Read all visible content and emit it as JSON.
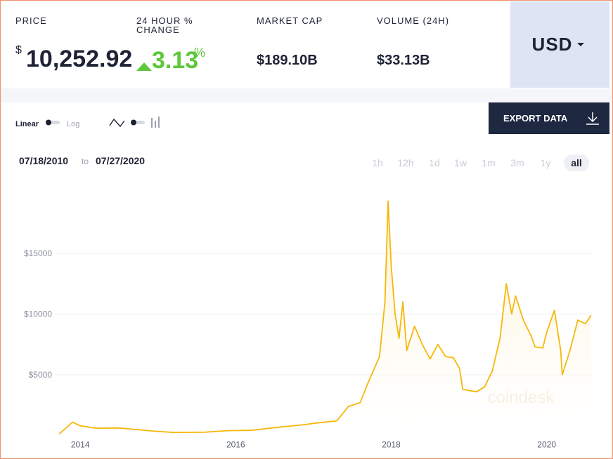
{
  "header": {
    "price_label": "PRICE",
    "price_currency": "$",
    "price": "10,252.92",
    "change_label": "24 HOUR % CHANGE",
    "change": "3.13",
    "change_unit": "%",
    "market_cap_label": "MARKET CAP",
    "market_cap": "$189.10B",
    "volume_label": "VOLUME (24H)",
    "volume": "$33.13B",
    "currency": "USD"
  },
  "controls": {
    "linear": "Linear",
    "log": "Log",
    "export": "EXPORT DATA",
    "start_date": "07/18/2010",
    "to": "to",
    "end_date": "07/27/2020",
    "ranges": [
      "1h",
      "12h",
      "1d",
      "1w",
      "1m",
      "3m",
      "1y",
      "all"
    ]
  },
  "watermark": "coindesk",
  "chart_data": {
    "type": "line",
    "color": "#f5b80a",
    "x": [
      2013.73,
      2013.9,
      2014.0,
      2014.2,
      2014.5,
      2014.9,
      2015.2,
      2015.6,
      2015.9,
      2016.2,
      2016.5,
      2016.9,
      2017.0,
      2017.3,
      2017.45,
      2017.6,
      2017.7,
      2017.85,
      2017.92,
      2017.96,
      2018.0,
      2018.05,
      2018.1,
      2018.15,
      2018.2,
      2018.3,
      2018.4,
      2018.5,
      2018.6,
      2018.7,
      2018.8,
      2018.88,
      2018.92,
      2019.0,
      2019.1,
      2019.2,
      2019.3,
      2019.4,
      2019.48,
      2019.55,
      2019.6,
      2019.7,
      2019.8,
      2019.85,
      2019.95,
      2020.0,
      2020.1,
      2020.18,
      2020.2,
      2020.3,
      2020.4,
      2020.5,
      2020.57
    ],
    "values": [
      130,
      1100,
      800,
      600,
      620,
      380,
      250,
      270,
      400,
      420,
      650,
      900,
      1000,
      1200,
      2400,
      2700,
      4300,
      6500,
      11000,
      19300,
      14000,
      10000,
      8000,
      11000,
      7000,
      9000,
      7500,
      6300,
      7500,
      6500,
      6400,
      5500,
      3800,
      3700,
      3600,
      4000,
      5300,
      8000,
      12500,
      10000,
      11500,
      9500,
      8200,
      7300,
      7200,
      8500,
      10300,
      7000,
      5000,
      7000,
      9500,
      9200,
      9900
    ],
    "xlim": [
      2013.7,
      2020.6
    ],
    "xticks": [
      2014,
      2016,
      2018,
      2020
    ],
    "ylim": [
      0,
      19500
    ],
    "yticks": [
      {
        "value": 5000,
        "label": "$5000"
      },
      {
        "value": 10000,
        "label": "$10000"
      },
      {
        "value": 15000,
        "label": "$15000"
      }
    ],
    "grid": true
  }
}
